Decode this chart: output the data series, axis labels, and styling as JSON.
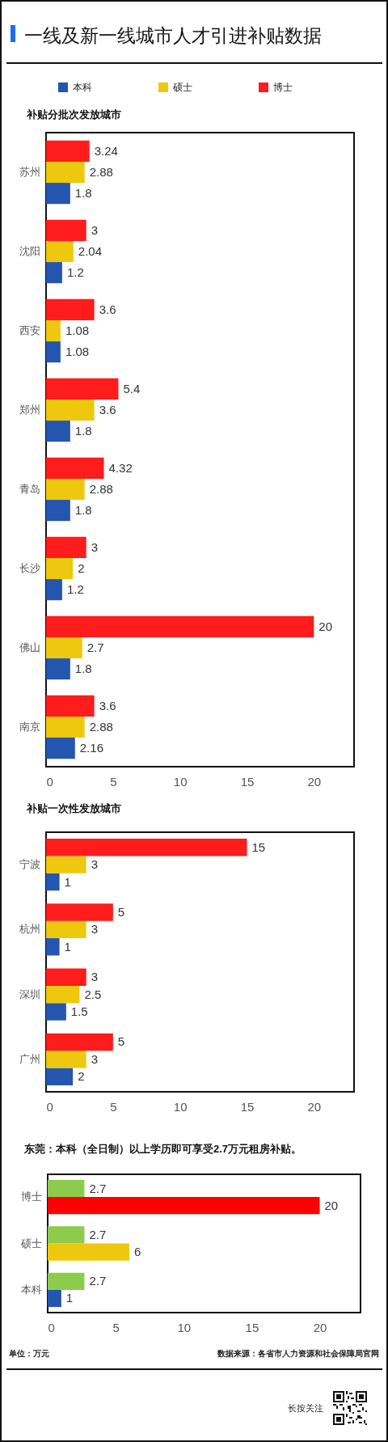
{
  "chart_data": [
    {
      "type": "bar",
      "title": "一线及新一线城市人才引进补贴数据",
      "subtitle": "补贴分批次发放城市",
      "orientation": "horizontal",
      "categories": [
        "苏州",
        "沈阳",
        "西安",
        "郑州",
        "青岛",
        "长沙",
        "佛山",
        "南京"
      ],
      "series": [
        {
          "name": "本科",
          "color": "#2456b0",
          "values": [
            1.8,
            1.2,
            1.08,
            1.8,
            1.8,
            1.2,
            1.8,
            2.16
          ]
        },
        {
          "name": "硕士",
          "color": "#eec80e",
          "values": [
            2.88,
            2.04,
            1.08,
            3.6,
            2.88,
            2,
            2.7,
            2.88
          ]
        },
        {
          "name": "博士",
          "color": "#fe1c1c",
          "values": [
            3.24,
            3,
            3.6,
            5.4,
            4.32,
            3,
            20,
            3.6
          ]
        }
      ],
      "xlim": [
        0,
        23
      ],
      "xticks": [
        0,
        5,
        10,
        15,
        20
      ],
      "data_labels": true,
      "legend": "top"
    },
    {
      "type": "bar",
      "title": "补贴一次性发放城市",
      "orientation": "horizontal",
      "categories": [
        "宁波",
        "杭州",
        "深圳",
        "广州"
      ],
      "series": [
        {
          "color": "#2456b0",
          "values": [
            1,
            1,
            1.5,
            2
          ]
        },
        {
          "color": "#eec80e",
          "values": [
            3,
            3,
            2.5,
            3
          ]
        },
        {
          "color": "#fe1c1c",
          "values": [
            15,
            5,
            3,
            5
          ]
        }
      ],
      "xlim": [
        0,
        23
      ],
      "xticks": [
        0,
        5,
        10,
        15,
        20
      ],
      "data_labels": true
    },
    {
      "type": "bar",
      "title": "东莞：本科（全日制）以上学历即可享受2.7万元租房补贴。",
      "orientation": "horizontal",
      "categories": [
        "博士",
        "硕士",
        "本科"
      ],
      "series": [
        {
          "colors": [
            "#ff0000",
            "#eec80e",
            "#2456b0"
          ],
          "values": [
            20,
            6,
            1
          ]
        },
        {
          "color": "#8dcb4d",
          "values": [
            2.7,
            2.7,
            2.7
          ]
        }
      ],
      "xlim": [
        0,
        23
      ],
      "xticks": [
        0,
        5,
        10,
        15,
        20
      ],
      "data_labels": true,
      "annotations": [
        "单位：万元",
        "数据来源：各省市人力资源和社会保障局官网",
        "长按关注"
      ]
    }
  ]
}
